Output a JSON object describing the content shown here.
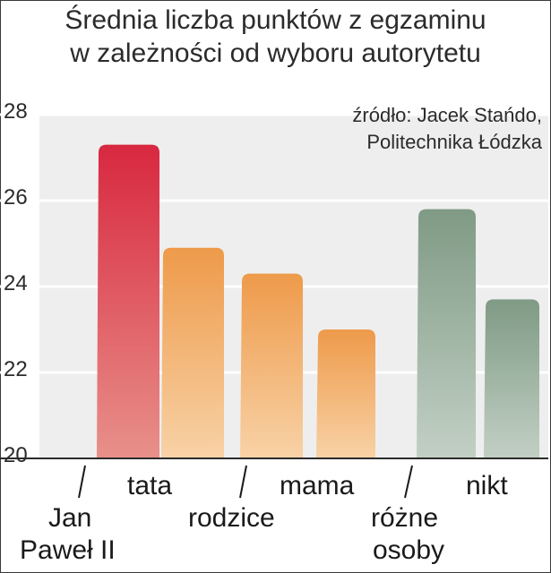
{
  "title_lines": [
    "Średnia liczba punktów z egzaminu",
    "w zależności od wyboru autorytetu"
  ],
  "source_lines": [
    "źródło: Jacek Stańdo,",
    "Politechnika Łódzka"
  ],
  "colors": {
    "red_top": "#d8283f",
    "red_bottom": "#e8908a",
    "orange_top": "#ee9a4a",
    "orange_bottom": "#f8d2a6",
    "green_top": "#7f9a85",
    "green_bottom": "#c2d0c4",
    "plot_bg": "#eeeeee",
    "grid": "#ffffff"
  },
  "chart_data": {
    "type": "bar",
    "title": "Średnia liczba punktów z egzaminu w zależności od wyboru autorytetu",
    "categories": [
      "Jan Paweł II",
      "tata",
      "rodzice",
      "mama",
      "różne osoby",
      "nikt"
    ],
    "values": [
      27.3,
      24.9,
      24.3,
      23.0,
      25.8,
      23.7
    ],
    "ylim": [
      20,
      28
    ],
    "yticks": [
      20,
      22,
      24,
      26,
      28
    ],
    "bar_colors": [
      "red",
      "orange",
      "orange",
      "orange",
      "green",
      "green"
    ],
    "grid": true,
    "xlabel": "",
    "ylabel": ""
  }
}
